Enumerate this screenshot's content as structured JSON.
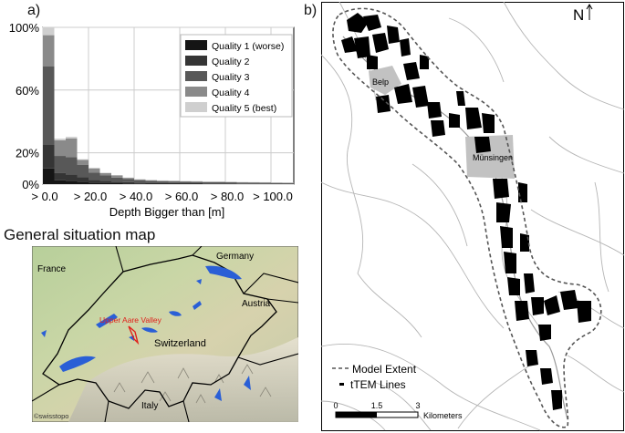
{
  "panel_a": {
    "label": "a)",
    "chart_data": {
      "type": "bar",
      "stacked": true,
      "xlabel": "Depth Bigger than [m]",
      "ylabel": "",
      "ylim": [
        0,
        100
      ],
      "xlim": [
        0,
        110
      ],
      "bin_width": 5,
      "x_ticks": [
        "> 0.0",
        "> 20.0",
        "> 40.0",
        "> 60.0",
        "> 80.0",
        "> 100.0"
      ],
      "x_tick_values": [
        0,
        20,
        40,
        60,
        80,
        100
      ],
      "y_ticks": [
        "0%",
        "20%",
        "60%",
        "100%"
      ],
      "y_tick_values": [
        0,
        20,
        60,
        100
      ],
      "grid": true,
      "legend_position": "top-right",
      "bins": [
        0,
        5,
        10,
        15,
        20,
        25,
        30,
        35,
        40,
        45,
        50,
        55,
        60,
        65,
        70,
        75,
        80,
        85,
        90,
        95,
        100,
        105
      ],
      "series": [
        {
          "name": "Quality 1 (worse)",
          "color": "#151515",
          "values": [
            10,
            2.5,
            2.2,
            1.6,
            1.0,
            0.8,
            0.6,
            0.5,
            0.4,
            0.3,
            0.3,
            0.3,
            0.25,
            0.25,
            0.2,
            0.2,
            0.2,
            0.15,
            0.15,
            0.15,
            0.1,
            0.1
          ]
        },
        {
          "name": "Quality 2",
          "color": "#353535",
          "values": [
            15,
            4.5,
            4.0,
            2.8,
            1.8,
            1.3,
            1.0,
            0.8,
            0.6,
            0.5,
            0.5,
            0.4,
            0.35,
            0.35,
            0.3,
            0.3,
            0.3,
            0.25,
            0.2,
            0.2,
            0.2,
            0.15
          ]
        },
        {
          "name": "Quality 3",
          "color": "#585858",
          "values": [
            50,
            11,
            11,
            8,
            4.5,
            3.6,
            2.6,
            1.9,
            1.5,
            1.3,
            1.1,
            1.0,
            0.9,
            0.8,
            0.75,
            0.7,
            0.65,
            0.6,
            0.55,
            0.5,
            0.45,
            0.4
          ]
        },
        {
          "name": "Quality 4",
          "color": "#8a8a8a",
          "values": [
            20,
            10,
            12,
            3,
            2.7,
            1.3,
            1.3,
            0.8,
            0.5,
            0.4,
            0.3,
            0.3,
            0.3,
            0.3,
            0.25,
            0.25,
            0.2,
            0.2,
            0.2,
            0.2,
            0.2,
            0.2
          ]
        },
        {
          "name": "Quality 5 (best)",
          "color": "#cfcfcf",
          "values": [
            5,
            1,
            1,
            0.5,
            0.5,
            0.3,
            0.3,
            0.2,
            0.2,
            0.2,
            0.2,
            0.2,
            0.2,
            0.2,
            0.2,
            0.2,
            0.2,
            0.2,
            0.2,
            0.2,
            0.2,
            0.2
          ]
        }
      ]
    }
  },
  "situation_map": {
    "title": "General situation map",
    "labels": {
      "france": "France",
      "germany": "Germany",
      "austria": "Austria",
      "switzerland": "Switzerland",
      "italy": "Italy",
      "valley": "Upper Aare Valley",
      "credit": "©swisstopo"
    },
    "colors": {
      "water": "#2a5fd6",
      "border": "#000000",
      "valley_marker": "#e0201a"
    }
  },
  "panel_b": {
    "label": "b)",
    "north_label": "N",
    "towns": {
      "belp": "Belp",
      "munsingen": "Münsingen"
    },
    "legend": {
      "extent": "Model Extent",
      "lines": "tTEM Lines"
    },
    "scale": {
      "ticks": [
        "0",
        "1.5",
        "3"
      ],
      "unit": "Kilometers"
    }
  }
}
